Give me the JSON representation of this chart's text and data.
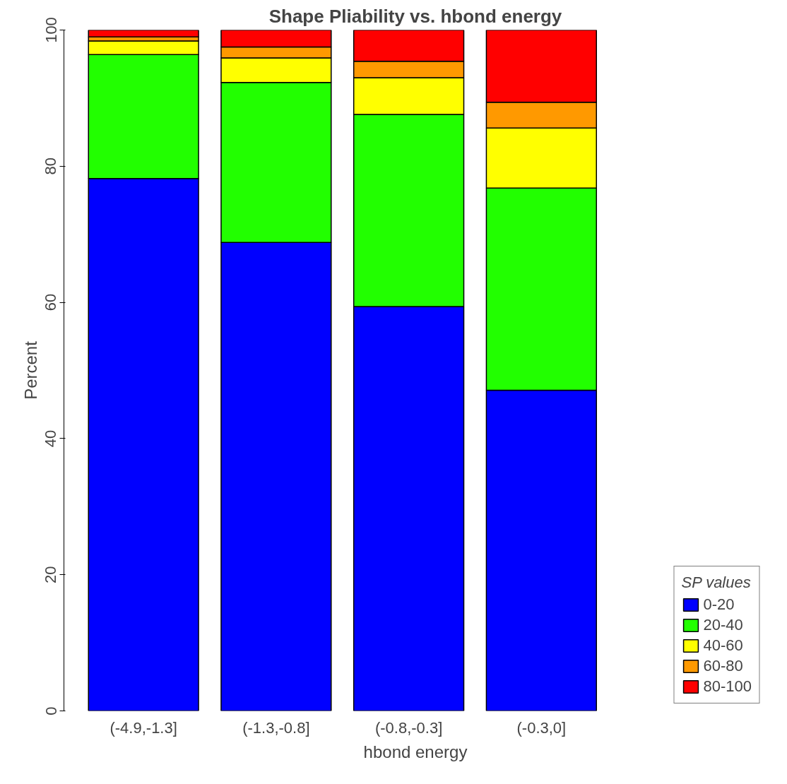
{
  "chart_data": {
    "type": "bar",
    "title": "Shape Pliability vs. hbond energy",
    "xlabel": "hbond energy",
    "ylabel": "Percent",
    "legend_title": "SP values",
    "categories": [
      "(-4.9,-1.3]",
      "(-1.3,-0.8]",
      "(-0.8,-0.3]",
      "(-0.3,0]"
    ],
    "stacked": true,
    "series": [
      {
        "name": "0-20",
        "color": "#0000ff",
        "values": [
          78.2,
          68.8,
          59.4,
          47.1
        ]
      },
      {
        "name": "20-40",
        "color": "#22ff00",
        "values": [
          18.2,
          23.5,
          28.2,
          29.7
        ]
      },
      {
        "name": "40-60",
        "color": "#ffff00",
        "values": [
          2.0,
          3.6,
          5.4,
          8.8
        ]
      },
      {
        "name": "60-80",
        "color": "#ff9900",
        "values": [
          0.6,
          1.6,
          2.4,
          3.8
        ]
      },
      {
        "name": "80-100",
        "color": "#ff0000",
        "values": [
          1.0,
          2.5,
          4.6,
          10.6
        ]
      }
    ],
    "ylim": [
      0,
      100
    ],
    "yticks": [
      0,
      20,
      40,
      60,
      80,
      100
    ],
    "grid": false,
    "legend": "bottom right"
  }
}
